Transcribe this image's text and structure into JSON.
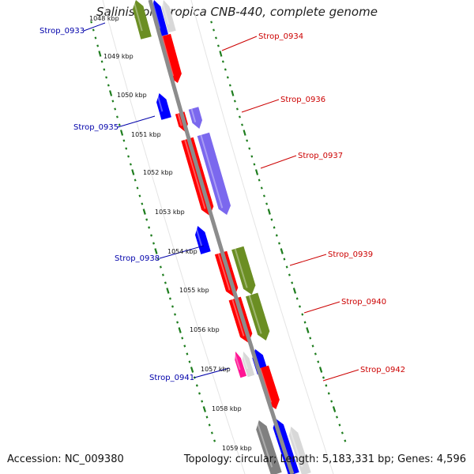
{
  "title": "Salinispora tropica CNB-440, complete genome",
  "footer": {
    "accession": "Accession: NC_009380",
    "summary": "Topology: circular; Length: 5,183,331 bp; Genes: 4,596"
  },
  "colors": {
    "backbone": "#8c8c8c",
    "tick": "#1e7d1e",
    "forward_label": "#cc0000",
    "reverse_label": "#0000aa",
    "red": "#ff0000",
    "blue": "#0000ff",
    "olive": "#6b8e23",
    "purple": "#7b68ee",
    "gray": "#808080",
    "magenta": "#ff1493",
    "light": "#d8d8d8"
  },
  "scale": {
    "unit": "kbp",
    "labels": [
      "1048 kbp",
      "1049 kbp",
      "1050 kbp",
      "1051 kbp",
      "1052 kbp",
      "1053 kbp",
      "1054 kbp",
      "1055 kbp",
      "1056 kbp",
      "1057 kbp",
      "1058 kbp",
      "1059 kbp"
    ]
  },
  "gene_labels": {
    "forward": [
      "Strop_0934",
      "Strop_0936",
      "Strop_0937",
      "Strop_0939",
      "Strop_0940",
      "Strop_0942"
    ],
    "reverse": [
      "Strop_0933",
      "Strop_0935",
      "Strop_0938",
      "Strop_0941"
    ]
  }
}
